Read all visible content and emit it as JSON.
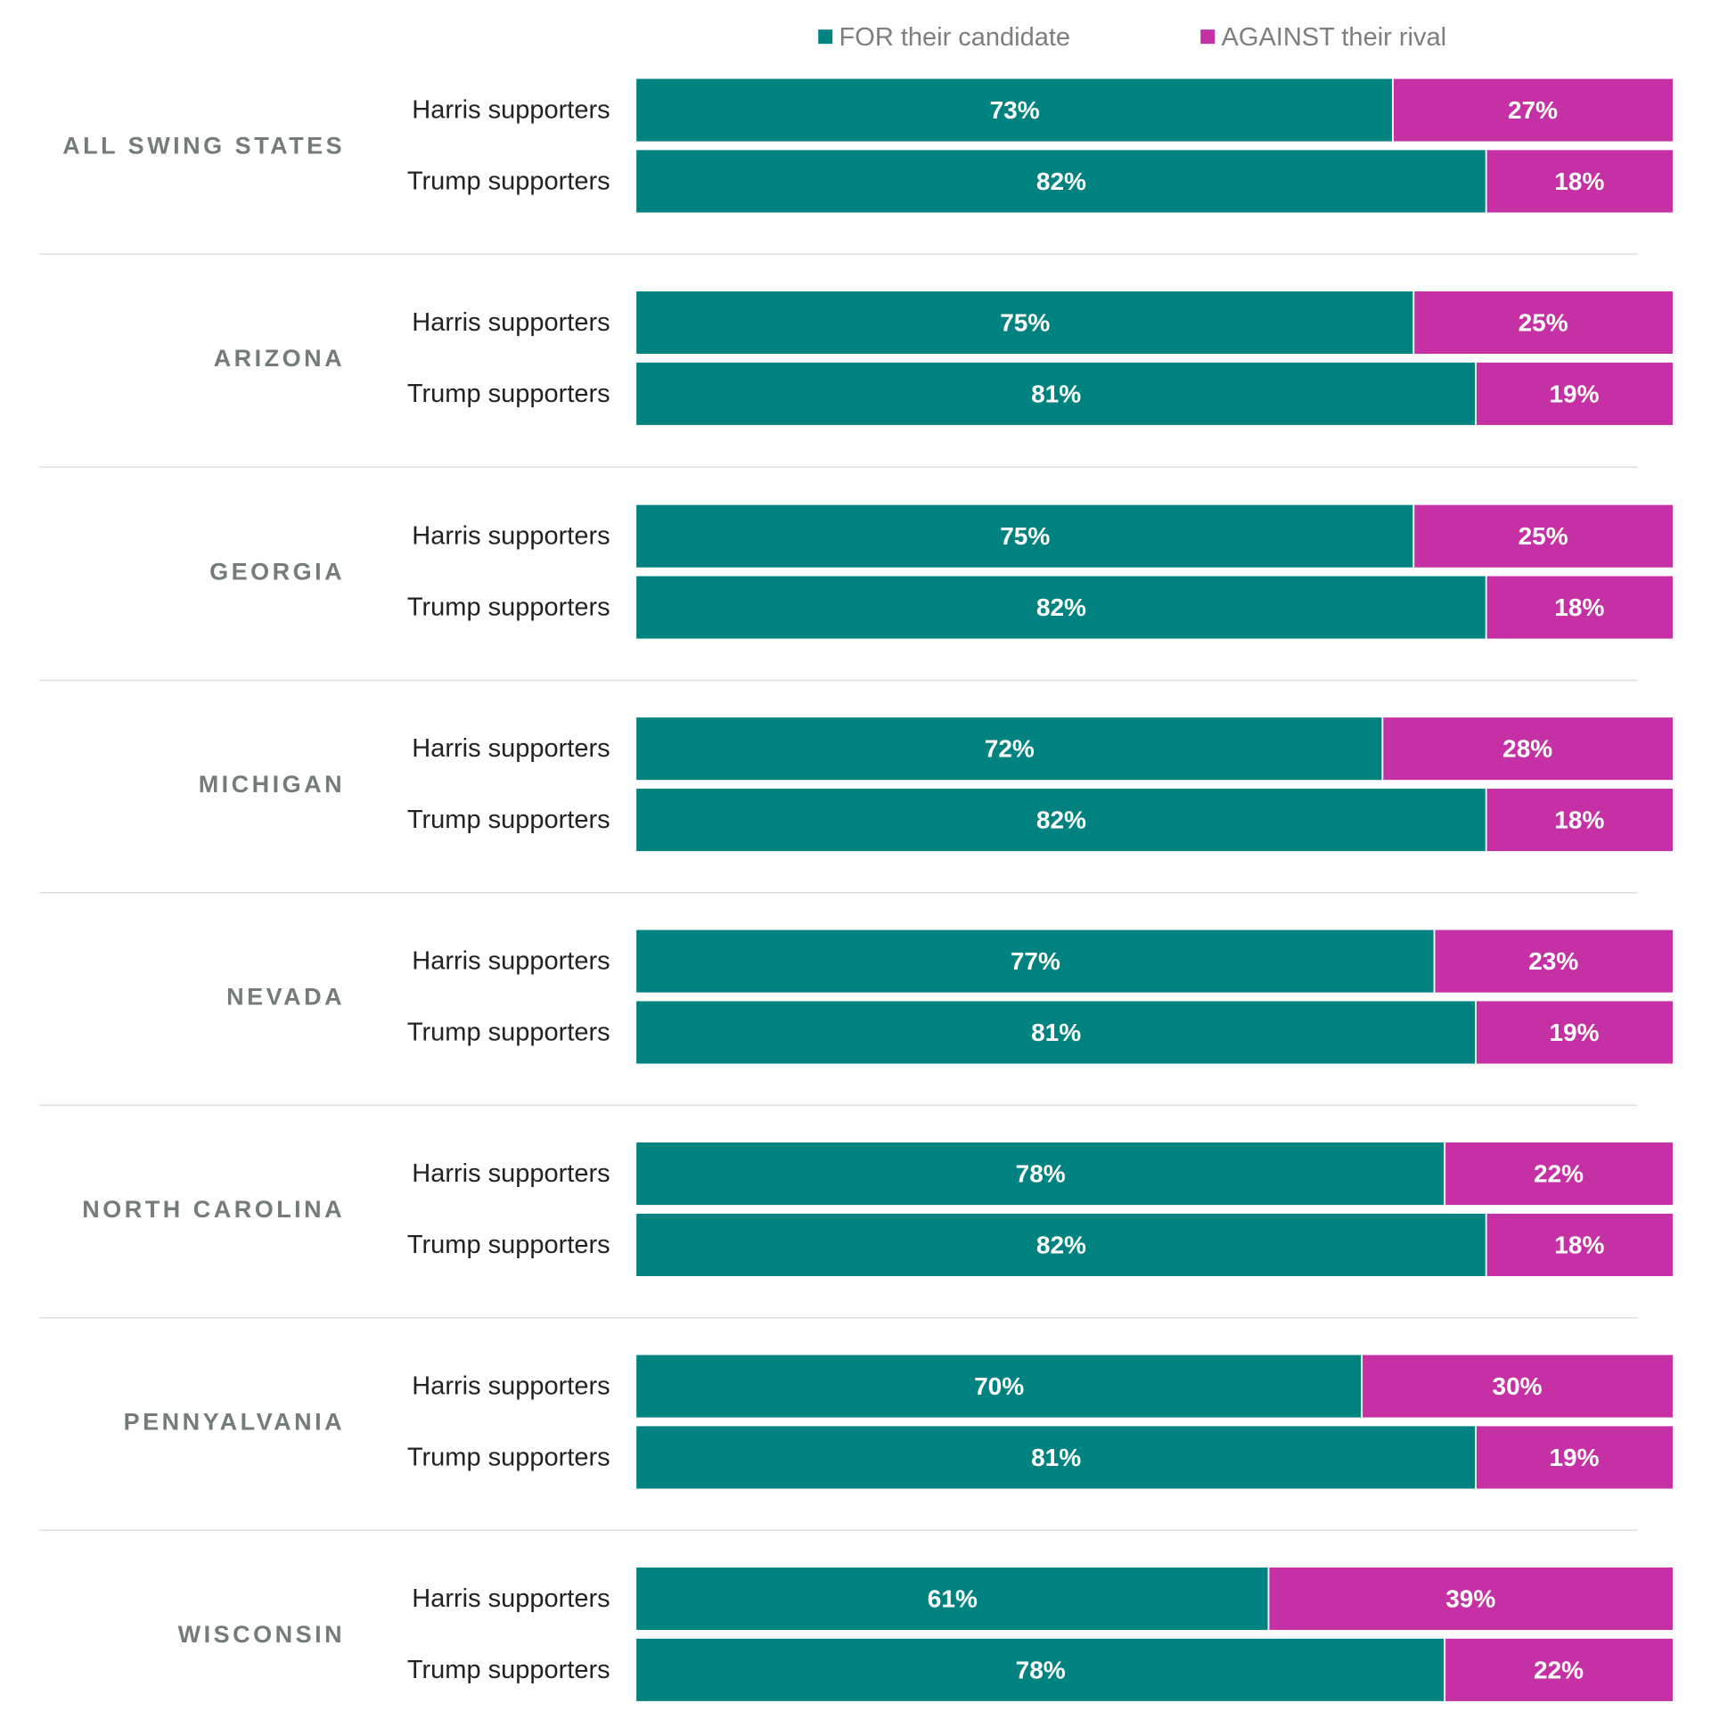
{
  "colors": {
    "for": "#008380",
    "against": "#c531a5",
    "state_label": "#737b7b",
    "row_label": "#222222",
    "legend_text": "#7b7f80",
    "divider": "#dddddd"
  },
  "chart_data": {
    "type": "bar",
    "orientation": "horizontal",
    "stacked": true,
    "normalized_to": 100,
    "legend": {
      "placement": "top",
      "entries": [
        {
          "key": "for",
          "label": "FOR their candidate"
        },
        {
          "key": "against",
          "label": "AGAINST their rival"
        }
      ]
    },
    "xlim": [
      0,
      100
    ],
    "groups": [
      {
        "label": "ALL SWING STATES",
        "rows": [
          {
            "label": "Harris supporters",
            "for": 73,
            "against": 27
          },
          {
            "label": "Trump supporters",
            "for": 82,
            "against": 18
          }
        ]
      },
      {
        "label": "ARIZONA",
        "rows": [
          {
            "label": "Harris supporters",
            "for": 75,
            "against": 25
          },
          {
            "label": "Trump supporters",
            "for": 81,
            "against": 19
          }
        ]
      },
      {
        "label": "GEORGIA",
        "rows": [
          {
            "label": "Harris supporters",
            "for": 75,
            "against": 25
          },
          {
            "label": "Trump supporters",
            "for": 82,
            "against": 18
          }
        ]
      },
      {
        "label": "MICHIGAN",
        "rows": [
          {
            "label": "Harris supporters",
            "for": 72,
            "against": 28
          },
          {
            "label": "Trump supporters",
            "for": 82,
            "against": 18
          }
        ]
      },
      {
        "label": "NEVADA",
        "rows": [
          {
            "label": "Harris supporters",
            "for": 77,
            "against": 23
          },
          {
            "label": "Trump supporters",
            "for": 81,
            "against": 19
          }
        ]
      },
      {
        "label": "NORTH CAROLINA",
        "rows": [
          {
            "label": "Harris supporters",
            "for": 78,
            "against": 22
          },
          {
            "label": "Trump supporters",
            "for": 82,
            "against": 18
          }
        ]
      },
      {
        "label": "PENNYALVANIA",
        "rows": [
          {
            "label": "Harris supporters",
            "for": 70,
            "against": 30
          },
          {
            "label": "Trump supporters",
            "for": 81,
            "against": 19
          }
        ]
      },
      {
        "label": "WISCONSIN",
        "rows": [
          {
            "label": "Harris supporters",
            "for": 61,
            "against": 39
          },
          {
            "label": "Trump supporters",
            "for": 78,
            "against": 22
          }
        ]
      }
    ]
  }
}
